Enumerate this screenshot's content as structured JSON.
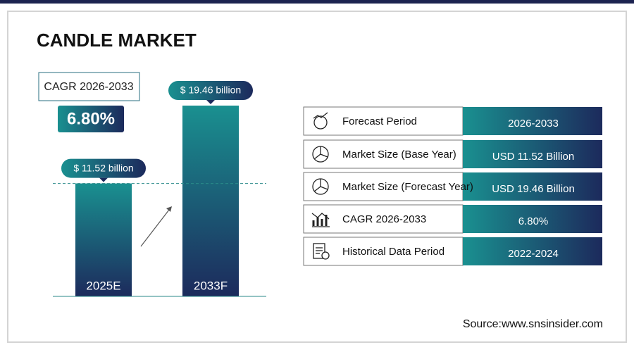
{
  "header": {
    "title": "CANDLE MARKET"
  },
  "cagr": {
    "label": "CAGR 2026-2033",
    "value": "6.80%"
  },
  "chart_data": {
    "type": "bar",
    "categories": [
      "2025E",
      "2033F"
    ],
    "values": [
      11.52,
      19.46
    ],
    "value_labels": [
      "$ 11.52 billion",
      "$ 19.46 billion"
    ],
    "colors": [
      "#1a9090",
      "#1c2a5c"
    ]
  },
  "table": {
    "rows": [
      [
        "Forecast Period",
        "2026-2033"
      ],
      [
        "Market Size (Base Year)",
        "USD 11.52 Billion"
      ],
      [
        "Market Size (Forecast Year)",
        "USD 19.46 Billion"
      ],
      [
        "CAGR 2026-2033",
        "6.80%"
      ],
      [
        "Historical Data Period",
        "2022-2024"
      ]
    ]
  },
  "source": "Source:www.snsinsider.com"
}
